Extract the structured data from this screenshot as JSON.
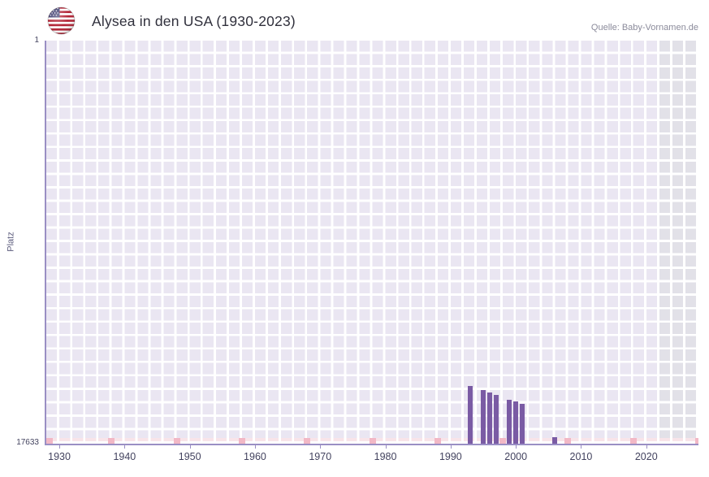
{
  "header": {
    "title": "Alysea in den USA (1930-2023)",
    "source": "Quelle: Baby-Vornamen.de",
    "flag_icon": "us-flag-icon"
  },
  "axes": {
    "y_label": "Platz",
    "y_top_label": "1",
    "y_bottom_label": "17633",
    "x_tick_labels": [
      "1930",
      "1940",
      "1950",
      "1960",
      "1970",
      "1980",
      "1990",
      "2000",
      "2010",
      "2020"
    ]
  },
  "chart_data": {
    "type": "bar",
    "title": "Alysea in den USA (1930-2023)",
    "xlabel": "",
    "ylabel": "Platz",
    "x_range": [
      1928,
      2028
    ],
    "x_tick_years": [
      1930,
      1940,
      1950,
      1960,
      1970,
      1980,
      1990,
      2000,
      2010,
      2020
    ],
    "y_rank_top": 1,
    "y_rank_bottom": 17633,
    "y_axis_inverted": true,
    "grid": true,
    "legend_position": "none",
    "series": [
      {
        "name": "Alysea",
        "points": [
          {
            "year": 1993,
            "rank": 15100
          },
          {
            "year": 1995,
            "rank": 15300
          },
          {
            "year": 1996,
            "rank": 15400
          },
          {
            "year": 1997,
            "rank": 15500
          },
          {
            "year": 1999,
            "rank": 15700
          },
          {
            "year": 2000,
            "rank": 15780
          },
          {
            "year": 2001,
            "rank": 15900
          },
          {
            "year": 2006,
            "rank": 17350
          }
        ]
      }
    ],
    "unranked_marker_years": [
      1928,
      1938,
      1948,
      1958,
      1968,
      1978,
      1988,
      1998,
      2008,
      2018,
      2028
    ],
    "future_band": {
      "start_year": 2022,
      "end_year": 2028
    },
    "colors": {
      "bar": "#7a5ba4",
      "plot_bg": "#eae6f2",
      "grid_line": "#ffffff",
      "future_band": "#e2e1e8",
      "unranked_strip": "#f8e4e9",
      "unranked_mark": "#f2b8c6",
      "axis_line": "#9a8fc4",
      "tick_text": "#43435f",
      "title_text": "#30303c",
      "source_text": "#8b8b9b"
    }
  }
}
